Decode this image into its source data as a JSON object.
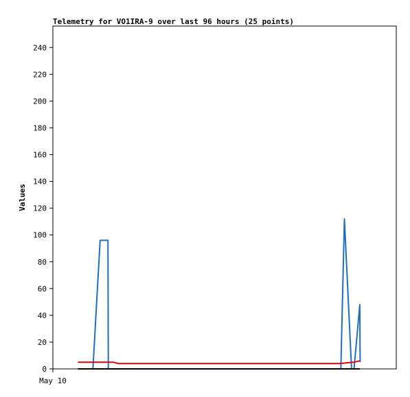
{
  "chart_data": {
    "type": "line",
    "title": "Telemetry for VO1IRA-9 over last 96 hours (25 points)",
    "xlabel": "",
    "ylabel": "Values",
    "ylim": [
      0,
      256
    ],
    "yticks": [
      0,
      20,
      40,
      60,
      80,
      100,
      120,
      140,
      160,
      180,
      200,
      220,
      240
    ],
    "xlim": [
      0,
      96
    ],
    "xticks": [
      {
        "value": 0,
        "label": "May 10"
      }
    ],
    "grid": false,
    "legend": "none",
    "colors": {
      "series_blue": "#1f6fbf",
      "series_red": "#e00000",
      "series_black": "#000000"
    },
    "series": [
      {
        "color": "#1f6fbf",
        "x": [
          11.2,
          13.2,
          13.7,
          15.4,
          15.5,
          80.5,
          81.5,
          83.5,
          84.2,
          85.8,
          85.9
        ],
        "y": [
          0,
          96,
          96,
          96,
          0,
          0,
          112,
          0,
          0,
          48,
          5
        ]
      },
      {
        "color": "#e00000",
        "x": [
          7.0,
          15.0,
          16.9,
          18.3,
          79.0,
          80.0,
          84.2,
          85.8
        ],
        "y": [
          5,
          5,
          5,
          4,
          4,
          4,
          5,
          6
        ]
      },
      {
        "color": "#000000",
        "x": [
          7.0,
          85.8
        ],
        "y": [
          0,
          0
        ]
      }
    ]
  }
}
